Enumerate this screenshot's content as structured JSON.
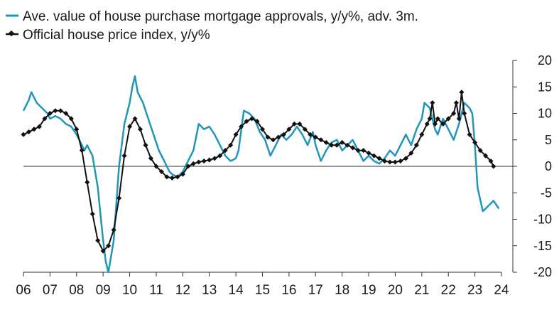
{
  "chart_data": {
    "type": "line",
    "title": "",
    "xlabel": "",
    "ylabel": "",
    "x_range": [
      2006,
      2024
    ],
    "ylim": [
      -20,
      20
    ],
    "y_ticks": [
      20,
      15,
      10,
      5,
      0,
      -5,
      -10,
      -15,
      -20
    ],
    "x_tick_labels": [
      "06",
      "07",
      "08",
      "09",
      "10",
      "11",
      "12",
      "13",
      "14",
      "15",
      "16",
      "17",
      "18",
      "19",
      "20",
      "21",
      "22",
      "23",
      "24"
    ],
    "x_tick_positions": [
      2006,
      2007,
      2008,
      2009,
      2010,
      2011,
      2012,
      2013,
      2014,
      2015,
      2016,
      2017,
      2018,
      2019,
      2020,
      2021,
      2022,
      2023,
      2024
    ],
    "y_axis_side": "right",
    "zero_line": true,
    "grid": false,
    "legend_position": "top-left",
    "series": [
      {
        "name": "Ave. value of house purchase mortgage approvals, y/y%, adv. 3m.",
        "color": "#2196b8",
        "marker": "none",
        "x": [
          2006.0,
          2006.2,
          2006.3,
          2006.5,
          2006.7,
          2006.9,
          2007.0,
          2007.2,
          2007.4,
          2007.6,
          2007.8,
          2008.0,
          2008.2,
          2008.3,
          2008.4,
          2008.6,
          2008.8,
          2008.9,
          2009.0,
          2009.1,
          2009.2,
          2009.4,
          2009.6,
          2009.8,
          2010.0,
          2010.1,
          2010.2,
          2010.3,
          2010.5,
          2010.7,
          2010.9,
          2011.1,
          2011.3,
          2011.5,
          2011.6,
          2011.8,
          2012.0,
          2012.2,
          2012.4,
          2012.6,
          2012.8,
          2013.0,
          2013.2,
          2013.4,
          2013.6,
          2013.8,
          2014.0,
          2014.1,
          2014.3,
          2014.5,
          2014.7,
          2014.9,
          2015.1,
          2015.3,
          2015.5,
          2015.7,
          2015.9,
          2016.1,
          2016.3,
          2016.5,
          2016.7,
          2016.9,
          2017.0,
          2017.2,
          2017.4,
          2017.6,
          2017.8,
          2018.0,
          2018.2,
          2018.4,
          2018.6,
          2018.8,
          2019.0,
          2019.2,
          2019.4,
          2019.6,
          2019.8,
          2020.0,
          2020.2,
          2020.4,
          2020.6,
          2020.8,
          2021.0,
          2021.1,
          2021.3,
          2021.5,
          2021.6,
          2021.8,
          2022.0,
          2022.2,
          2022.4,
          2022.6,
          2022.8,
          2022.9,
          2023.0,
          2023.1,
          2023.3,
          2023.5,
          2023.7,
          2023.9
        ],
        "y": [
          10.5,
          12.5,
          14.0,
          12.0,
          11.0,
          10.0,
          9.0,
          9.5,
          9.0,
          8.0,
          7.5,
          6.0,
          4.0,
          3.0,
          4.0,
          2.0,
          -4.0,
          -9.0,
          -14.0,
          -18.0,
          -20.0,
          -14.0,
          0.0,
          8.0,
          12.0,
          15.0,
          17.0,
          14.0,
          12.0,
          9.0,
          6.0,
          3.0,
          1.0,
          -1.0,
          -1.5,
          -2.0,
          -1.0,
          1.0,
          3.0,
          8.0,
          7.0,
          7.5,
          6.0,
          4.0,
          2.0,
          1.0,
          1.5,
          3.0,
          10.5,
          10.0,
          9.0,
          6.5,
          5.0,
          2.0,
          4.0,
          6.0,
          5.0,
          6.0,
          7.5,
          6.0,
          4.0,
          6.5,
          4.0,
          1.0,
          3.0,
          4.5,
          5.0,
          3.0,
          4.0,
          5.0,
          3.0,
          1.0,
          2.0,
          1.0,
          0.5,
          1.5,
          3.0,
          2.0,
          4.0,
          6.0,
          4.0,
          7.0,
          9.0,
          12.0,
          11.0,
          7.0,
          6.0,
          9.0,
          7.0,
          5.0,
          8.0,
          12.0,
          11.0,
          10.0,
          4.0,
          -4.0,
          -8.5,
          -7.5,
          -6.5,
          -8.0
        ]
      },
      {
        "name": "Official house price index, y/y%",
        "color": "#111111",
        "marker": "diamond",
        "x": [
          2006.0,
          2006.2,
          2006.4,
          2006.6,
          2006.8,
          2007.0,
          2007.2,
          2007.4,
          2007.6,
          2007.8,
          2008.0,
          2008.2,
          2008.4,
          2008.6,
          2008.8,
          2009.0,
          2009.2,
          2009.4,
          2009.6,
          2009.8,
          2010.0,
          2010.2,
          2010.4,
          2010.6,
          2010.8,
          2011.0,
          2011.2,
          2011.4,
          2011.6,
          2011.8,
          2012.0,
          2012.2,
          2012.4,
          2012.6,
          2012.8,
          2013.0,
          2013.2,
          2013.4,
          2013.6,
          2013.8,
          2014.0,
          2014.2,
          2014.4,
          2014.6,
          2014.8,
          2015.0,
          2015.2,
          2015.4,
          2015.6,
          2015.8,
          2016.0,
          2016.2,
          2016.4,
          2016.6,
          2016.8,
          2017.0,
          2017.2,
          2017.4,
          2017.6,
          2017.8,
          2018.0,
          2018.2,
          2018.4,
          2018.6,
          2018.8,
          2019.0,
          2019.2,
          2019.4,
          2019.6,
          2019.8,
          2020.0,
          2020.2,
          2020.4,
          2020.6,
          2020.8,
          2021.0,
          2021.2,
          2021.3,
          2021.4,
          2021.5,
          2021.6,
          2021.8,
          2022.0,
          2022.2,
          2022.3,
          2022.4,
          2022.5,
          2022.6,
          2022.8,
          2023.0,
          2023.2,
          2023.4,
          2023.6,
          2023.7
        ],
        "y": [
          6.0,
          6.5,
          7.0,
          7.5,
          9.0,
          10.0,
          10.5,
          10.5,
          10.0,
          9.0,
          7.0,
          3.0,
          -3.0,
          -9.0,
          -14.0,
          -16.0,
          -15.0,
          -12.0,
          -6.0,
          2.0,
          7.5,
          9.0,
          7.0,
          4.0,
          1.5,
          0.0,
          -1.0,
          -2.0,
          -2.2,
          -2.0,
          -1.5,
          0.0,
          0.5,
          0.8,
          1.0,
          1.2,
          1.5,
          2.0,
          3.0,
          4.0,
          6.0,
          7.5,
          8.5,
          9.0,
          8.5,
          7.0,
          5.5,
          5.0,
          5.5,
          6.0,
          7.0,
          8.0,
          8.0,
          7.0,
          6.0,
          5.5,
          5.0,
          4.5,
          4.0,
          4.0,
          4.5,
          4.0,
          3.5,
          3.0,
          3.0,
          2.5,
          2.0,
          1.5,
          1.0,
          0.8,
          0.8,
          1.0,
          1.5,
          2.5,
          4.0,
          6.0,
          8.0,
          9.0,
          12.0,
          8.0,
          9.0,
          8.0,
          9.0,
          10.0,
          12.0,
          9.0,
          14.0,
          10.0,
          6.0,
          4.5,
          3.0,
          2.0,
          1.0,
          0.0
        ]
      }
    ]
  }
}
